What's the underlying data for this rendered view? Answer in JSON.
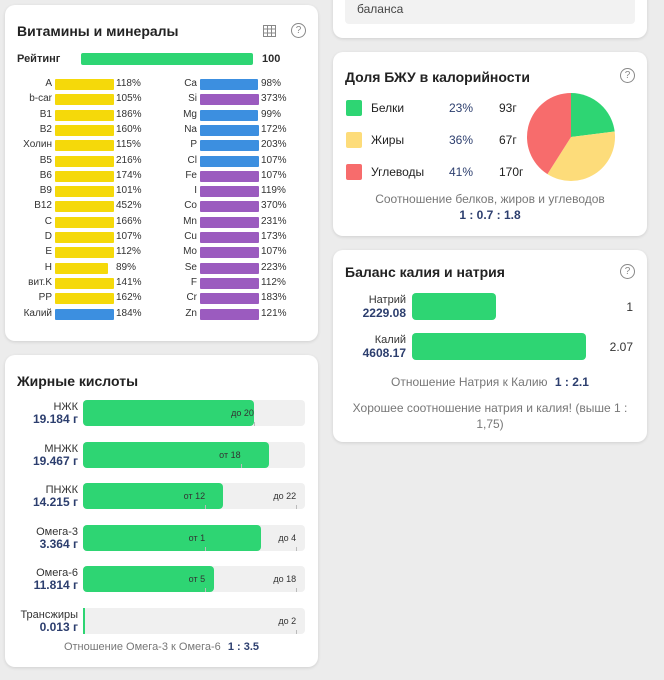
{
  "top_card": {
    "text": "баланса"
  },
  "vitamins": {
    "title": "Витамины и минералы",
    "rating_label": "Рейтинг",
    "rating_value": "100",
    "rating_fraction": 1.0,
    "colors": {
      "vitamin": "#f5d90a",
      "mineral_blue": "#3c8fe0",
      "mineral_purple": "#9b5bbf",
      "rating": "#2ed573"
    },
    "left": [
      {
        "name": "A",
        "pct": "118%",
        "level": 118,
        "color": "#f5d90a"
      },
      {
        "name": "b-car",
        "pct": "105%",
        "level": 105,
        "color": "#f5d90a"
      },
      {
        "name": "B1",
        "pct": "186%",
        "level": 186,
        "color": "#f5d90a"
      },
      {
        "name": "B2",
        "pct": "160%",
        "level": 160,
        "color": "#f5d90a"
      },
      {
        "name": "Холин",
        "pct": "115%",
        "level": 115,
        "color": "#f5d90a"
      },
      {
        "name": "B5",
        "pct": "216%",
        "level": 216,
        "color": "#f5d90a"
      },
      {
        "name": "B6",
        "pct": "174%",
        "level": 174,
        "color": "#f5d90a"
      },
      {
        "name": "B9",
        "pct": "101%",
        "level": 101,
        "color": "#f5d90a"
      },
      {
        "name": "B12",
        "pct": "452%",
        "level": 452,
        "color": "#f5d90a"
      },
      {
        "name": "C",
        "pct": "166%",
        "level": 166,
        "color": "#f5d90a"
      },
      {
        "name": "D",
        "pct": "107%",
        "level": 107,
        "color": "#f5d90a"
      },
      {
        "name": "E",
        "pct": "112%",
        "level": 112,
        "color": "#f5d90a"
      },
      {
        "name": "H",
        "pct": "89%",
        "level": 89,
        "color": "#f5d90a"
      },
      {
        "name": "вит.K",
        "pct": "141%",
        "level": 141,
        "color": "#f5d90a"
      },
      {
        "name": "PP",
        "pct": "162%",
        "level": 162,
        "color": "#f5d90a"
      },
      {
        "name": "Калий",
        "pct": "184%",
        "level": 184,
        "color": "#3c8fe0"
      }
    ],
    "right": [
      {
        "name": "Ca",
        "pct": "98%",
        "level": 98,
        "color": "#3c8fe0"
      },
      {
        "name": "Si",
        "pct": "373%",
        "level": 373,
        "color": "#9b5bbf"
      },
      {
        "name": "Mg",
        "pct": "99%",
        "level": 99,
        "color": "#3c8fe0"
      },
      {
        "name": "Na",
        "pct": "172%",
        "level": 172,
        "color": "#3c8fe0"
      },
      {
        "name": "P",
        "pct": "203%",
        "level": 203,
        "color": "#3c8fe0"
      },
      {
        "name": "Cl",
        "pct": "107%",
        "level": 107,
        "color": "#3c8fe0"
      },
      {
        "name": "Fe",
        "pct": "107%",
        "level": 107,
        "color": "#9b5bbf"
      },
      {
        "name": "I",
        "pct": "119%",
        "level": 119,
        "color": "#9b5bbf"
      },
      {
        "name": "Co",
        "pct": "370%",
        "level": 370,
        "color": "#9b5bbf"
      },
      {
        "name": "Mn",
        "pct": "231%",
        "level": 231,
        "color": "#9b5bbf"
      },
      {
        "name": "Cu",
        "pct": "173%",
        "level": 173,
        "color": "#9b5bbf"
      },
      {
        "name": "Mo",
        "pct": "107%",
        "level": 107,
        "color": "#9b5bbf"
      },
      {
        "name": "Se",
        "pct": "223%",
        "level": 223,
        "color": "#9b5bbf"
      },
      {
        "name": "F",
        "pct": "112%",
        "level": 112,
        "color": "#9b5bbf"
      },
      {
        "name": "Cr",
        "pct": "183%",
        "level": 183,
        "color": "#9b5bbf"
      },
      {
        "name": "Zn",
        "pct": "121%",
        "level": 121,
        "color": "#9b5bbf"
      }
    ]
  },
  "fatty_acids": {
    "title": "Жирные кислоты",
    "items": [
      {
        "name": "НЖК",
        "value": "19.184 г",
        "fill": 0.77,
        "marks": [
          {
            "text": "до 20",
            "pos": 0.77
          }
        ]
      },
      {
        "name": "МНЖК",
        "value": "19.467 г",
        "fill": 0.84,
        "marks": [
          {
            "text": "от 18",
            "pos": 0.71
          }
        ]
      },
      {
        "name": "ПНЖК",
        "value": "14.215 г",
        "fill": 0.63,
        "marks": [
          {
            "text": "от 12",
            "pos": 0.55
          },
          {
            "text": "до 22",
            "pos": 0.96
          }
        ]
      },
      {
        "name": "Омега-3",
        "value": "3.364 г",
        "fill": 0.8,
        "marks": [
          {
            "text": "от 1",
            "pos": 0.55
          },
          {
            "text": "до 4",
            "pos": 0.96
          }
        ]
      },
      {
        "name": "Омега-6",
        "value": "11.814 г",
        "fill": 0.59,
        "marks": [
          {
            "text": "от 5",
            "pos": 0.55
          },
          {
            "text": "до 18",
            "pos": 0.96
          }
        ]
      },
      {
        "name": "Трансжиры",
        "value": "0.013 г",
        "fill": 0.005,
        "marks": [
          {
            "text": "до 2",
            "pos": 0.96
          }
        ]
      }
    ],
    "ratio_label": "Отношение Омега-3 к Омега-6",
    "ratio_value": "1 : 3.5"
  },
  "bju": {
    "title": "Доля БЖУ в калорийности",
    "items": [
      {
        "name": "Белки",
        "pct": "23%",
        "grams": "93г",
        "share": 23,
        "color": "#2ed573"
      },
      {
        "name": "Жиры",
        "pct": "36%",
        "grams": "67г",
        "share": 36,
        "color": "#fddc7a"
      },
      {
        "name": "Углеводы",
        "pct": "41%",
        "grams": "170г",
        "share": 41,
        "color": "#f76c6c"
      }
    ],
    "ratio_label": "Соотношение белков, жиров и углеводов",
    "ratio_value": "1 : 0.7 : 1.8"
  },
  "kna": {
    "title": "Баланс калия и натрия",
    "items": [
      {
        "name": "Натрий",
        "value": "2229.08",
        "ratio": "1",
        "fill": 0.48
      },
      {
        "name": "Калий",
        "value": "4608.17",
        "ratio": "2.07",
        "fill": 1.0
      }
    ],
    "ratio_label": "Отношение Натрия к Калию",
    "ratio_value": "1 : 2.1",
    "note": "Хорошее соотношение натрия и калия! (выше 1 : 1,75)"
  }
}
